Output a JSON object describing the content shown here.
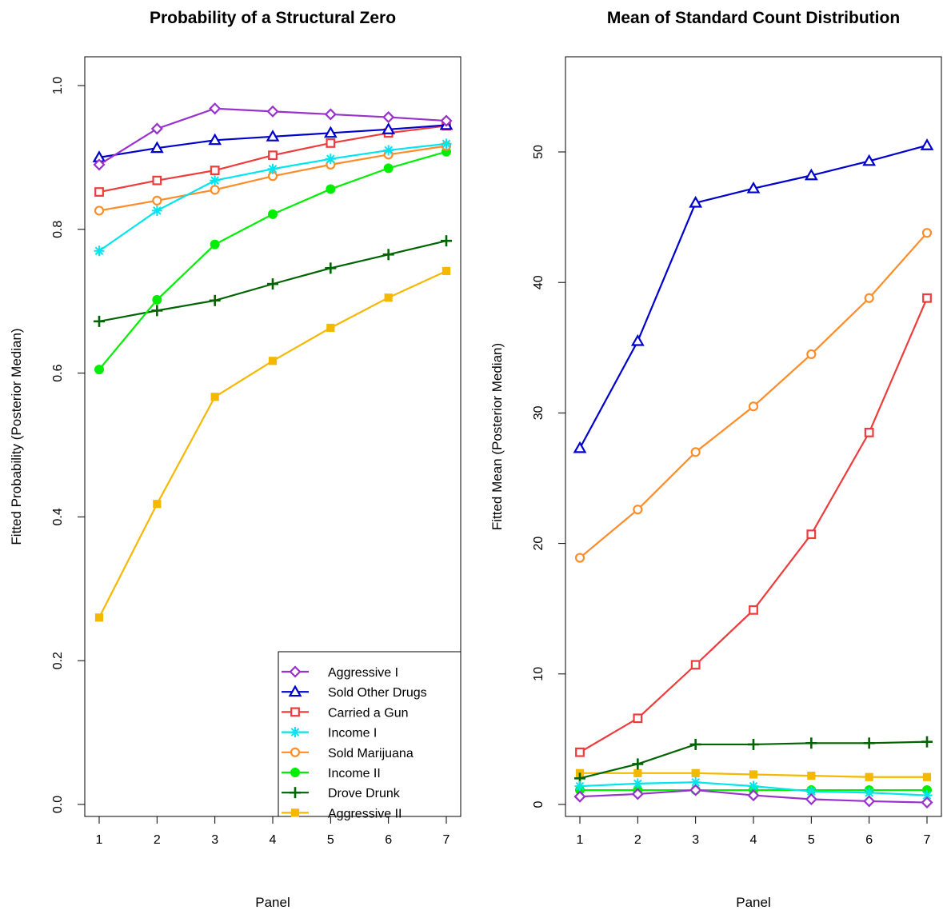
{
  "chart_data": [
    {
      "type": "line",
      "title": "Probability of a Structural Zero",
      "xlabel": "Panel",
      "ylabel": "Fitted Probability (Posterior Median)",
      "x": [
        1,
        2,
        3,
        4,
        5,
        6,
        7
      ],
      "xticks": [
        "1",
        "2",
        "3",
        "4",
        "5",
        "6",
        "7"
      ],
      "yticks": [
        "0.0",
        "0.2",
        "0.4",
        "0.6",
        "0.8",
        "1.0"
      ],
      "ylim": [
        0,
        1.0
      ],
      "grid": false,
      "legend_position": "bottom-right",
      "series": [
        {
          "name": "Aggressive I",
          "color": "#9932CC",
          "marker": "diamond",
          "values": [
            0.89,
            0.94,
            0.968,
            0.964,
            0.96,
            0.956,
            0.951
          ]
        },
        {
          "name": "Sold Other Drugs",
          "color": "#0000CD",
          "marker": "triangle",
          "values": [
            0.9,
            0.913,
            0.924,
            0.929,
            0.934,
            0.939,
            0.945
          ]
        },
        {
          "name": "Carried a Gun",
          "color": "#EE3B3B",
          "marker": "square-open",
          "values": [
            0.852,
            0.868,
            0.882,
            0.903,
            0.92,
            0.934,
            0.944
          ]
        },
        {
          "name": "Income I",
          "color": "#00E5EE",
          "marker": "asterisk",
          "values": [
            0.77,
            0.826,
            0.868,
            0.884,
            0.898,
            0.91,
            0.919
          ]
        },
        {
          "name": "Sold Marijuana",
          "color": "#FF8C28",
          "marker": "circle-open",
          "values": [
            0.826,
            0.84,
            0.855,
            0.874,
            0.89,
            0.904,
            0.916
          ]
        },
        {
          "name": "Income II",
          "color": "#00EE00",
          "marker": "circle-filled",
          "values": [
            0.605,
            0.702,
            0.779,
            0.821,
            0.856,
            0.885,
            0.908
          ]
        },
        {
          "name": "Drove Drunk",
          "color": "#006400",
          "marker": "plus",
          "values": [
            0.672,
            0.687,
            0.701,
            0.724,
            0.746,
            0.765,
            0.784
          ]
        },
        {
          "name": "Aggressive II",
          "color": "#F5B800",
          "marker": "square-filled",
          "values": [
            0.26,
            0.418,
            0.567,
            0.617,
            0.663,
            0.705,
            0.742
          ]
        }
      ]
    },
    {
      "type": "line",
      "title": "Mean of Standard Count Distribution",
      "xlabel": "Panel",
      "ylabel": "Fitted Mean (Posterior Median)",
      "x": [
        1,
        2,
        3,
        4,
        5,
        6,
        7
      ],
      "xticks": [
        "1",
        "2",
        "3",
        "4",
        "5",
        "6",
        "7"
      ],
      "yticks": [
        "0",
        "10",
        "20",
        "30",
        "40",
        "50"
      ],
      "ylim": [
        0,
        50
      ],
      "grid": false,
      "series": [
        {
          "name": "Aggressive I",
          "color": "#9932CC",
          "marker": "diamond",
          "values": [
            0.6,
            0.8,
            1.1,
            0.7,
            0.4,
            0.25,
            0.15
          ]
        },
        {
          "name": "Sold Other Drugs",
          "color": "#0000CD",
          "marker": "triangle",
          "values": [
            27.3,
            35.5,
            46.1,
            47.2,
            48.2,
            49.3,
            50.5
          ]
        },
        {
          "name": "Carried a Gun",
          "color": "#EE3B3B",
          "marker": "square-open",
          "values": [
            4.0,
            6.6,
            10.7,
            14.9,
            20.7,
            28.5,
            38.8
          ]
        },
        {
          "name": "Income I",
          "color": "#00E5EE",
          "marker": "asterisk",
          "values": [
            1.4,
            1.6,
            1.7,
            1.4,
            1.0,
            0.9,
            0.7
          ]
        },
        {
          "name": "Sold Marijuana",
          "color": "#FF8C28",
          "marker": "circle-open",
          "values": [
            18.9,
            22.6,
            27.0,
            30.5,
            34.5,
            38.8,
            43.8
          ]
        },
        {
          "name": "Income II",
          "color": "#00EE00",
          "marker": "circle-filled",
          "values": [
            1.1,
            1.1,
            1.1,
            1.1,
            1.1,
            1.1,
            1.1
          ]
        },
        {
          "name": "Drove Drunk",
          "color": "#006400",
          "marker": "plus",
          "values": [
            2.0,
            3.1,
            4.6,
            4.6,
            4.7,
            4.7,
            4.8
          ]
        },
        {
          "name": "Aggressive II",
          "color": "#F5B800",
          "marker": "square-filled",
          "values": [
            2.4,
            2.4,
            2.4,
            2.3,
            2.2,
            2.1,
            2.1
          ]
        }
      ]
    }
  ]
}
